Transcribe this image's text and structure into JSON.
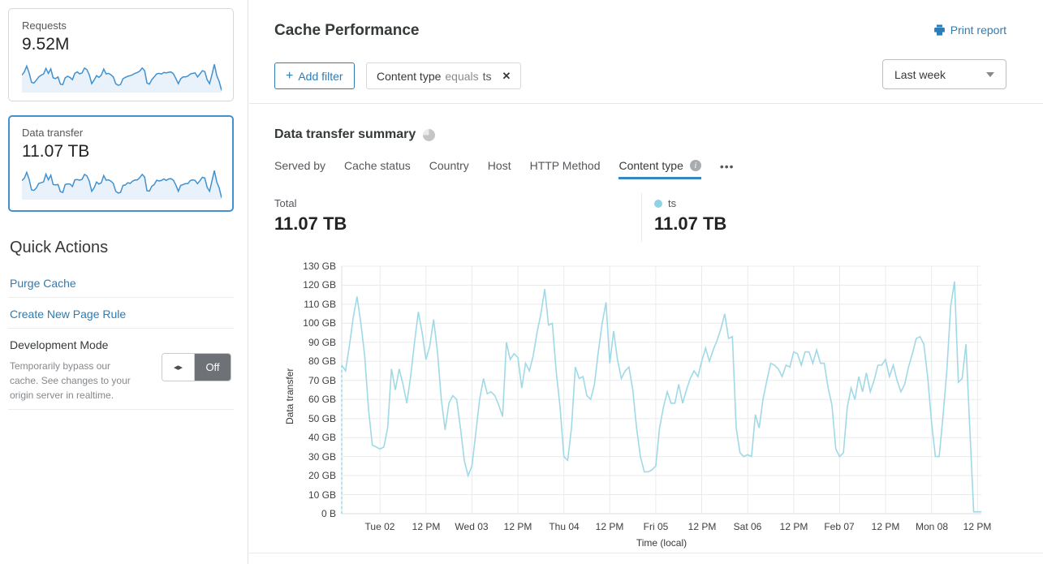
{
  "colors": {
    "accent": "#2c7cb5",
    "sparkline": "#4191ce",
    "sparkline_fill": "#e9f2fa",
    "selected_card_border": "#4191ce",
    "chart_line": "#a0d9e6",
    "legend_dot": "#8fd2e2",
    "active_tab_underline": "#3788c2",
    "toggle_off_bg": "#6e7277"
  },
  "sidebar": {
    "cards": [
      {
        "label": "Requests",
        "value": "9.52M",
        "sparkline": [
          70,
          85,
          110,
          80,
          38,
          35,
          48,
          62,
          70,
          75,
          100,
          78,
          98,
          58,
          55,
          62,
          30,
          28,
          58,
          65,
          60,
          50,
          78,
          85,
          76,
          80,
          102,
          95,
          72,
          32,
          48,
          68,
          60,
          70,
          97,
          76,
          78,
          72,
          62,
          32,
          25,
          28,
          54,
          60,
          65,
          68,
          72,
          78,
          82,
          88,
          102,
          90,
          35,
          30,
          50,
          62,
          76,
          78,
          75,
          82,
          80,
          83,
          84,
          76,
          55,
          32,
          54,
          62,
          62,
          66,
          75,
          78,
          80,
          62,
          75,
          90,
          86,
          50,
          32,
          72,
          118,
          68,
          42,
          2
        ]
      },
      {
        "label": "Data transfer",
        "value": "11.07 TB",
        "selected": true,
        "sparkline": [
          78,
          88,
          114,
          83,
          36,
          34,
          45,
          65,
          68,
          72,
          106,
          81,
          102,
          60,
          58,
          60,
          28,
          25,
          60,
          63,
          62,
          51,
          81,
          82,
          79,
          83,
          105,
          99,
          75,
          30,
          45,
          71,
          62,
          68,
          100,
          79,
          81,
          75,
          65,
          30,
          22,
          25,
          56,
          58,
          68,
          65,
          75,
          80,
          80,
          91,
          105,
          93,
          32,
          31,
          52,
          60,
          79,
          76,
          78,
          85,
          78,
          85,
          86,
          79,
          57,
          30,
          56,
          60,
          64,
          64,
          78,
          81,
          78,
          64,
          77,
          92,
          89,
          48,
          30,
          75,
          122,
          71,
          45,
          1
        ]
      }
    ],
    "quick_actions": {
      "title": "Quick Actions",
      "links": [
        "Purge Cache",
        "Create New Page Rule"
      ],
      "dev_mode": {
        "title": "Development Mode",
        "description": "Temporarily bypass our cache. See changes to your origin server in realtime.",
        "toggle_icon": "◂▸",
        "toggle_label": "Off"
      }
    }
  },
  "header": {
    "title": "Cache Performance",
    "print_label": "Print report",
    "add_filter": {
      "icon": "+",
      "label": "Add filter"
    },
    "filter_chip": {
      "field": "Content type",
      "operator": "equals",
      "value": "ts",
      "remove_icon": "✕"
    },
    "time_range": "Last week"
  },
  "summary": {
    "title": "Data transfer summary",
    "tabs": [
      {
        "label": "Served by"
      },
      {
        "label": "Cache status"
      },
      {
        "label": "Country"
      },
      {
        "label": "Host"
      },
      {
        "label": "HTTP Method"
      },
      {
        "label": "Content type",
        "active": true
      }
    ],
    "info_icon_glyph": "i",
    "more_label": "•••",
    "total": {
      "label": "Total",
      "value": "11.07 TB"
    },
    "legend": {
      "label": "ts",
      "value": "11.07 TB"
    }
  },
  "chart_data": {
    "type": "line",
    "title": "Data transfer summary — ts",
    "xlabel": "Time (local)",
    "ylabel": "Data transfer",
    "unit": "GB",
    "ylim": [
      0,
      130
    ],
    "grid": true,
    "x_description": "hourly samples, Mon Feb 01 14:00 through Mon Feb 08 13:00, first point rendered with dashed drop-line",
    "y_ticks": [
      {
        "value": 0,
        "label": "0 B"
      },
      {
        "value": 10,
        "label": "10 GB"
      },
      {
        "value": 20,
        "label": "20 GB"
      },
      {
        "value": 30,
        "label": "30 GB"
      },
      {
        "value": 40,
        "label": "40 GB"
      },
      {
        "value": 50,
        "label": "50 GB"
      },
      {
        "value": 60,
        "label": "60 GB"
      },
      {
        "value": 70,
        "label": "70 GB"
      },
      {
        "value": 80,
        "label": "80 GB"
      },
      {
        "value": 90,
        "label": "90 GB"
      },
      {
        "value": 100,
        "label": "100 GB"
      },
      {
        "value": 110,
        "label": "110 GB"
      },
      {
        "value": 120,
        "label": "120 GB"
      },
      {
        "value": 130,
        "label": "130 GB"
      }
    ],
    "x_ticks": [
      {
        "index": 10,
        "label": "Tue 02"
      },
      {
        "index": 22,
        "label": "12 PM"
      },
      {
        "index": 34,
        "label": "Wed 03"
      },
      {
        "index": 46,
        "label": "12 PM"
      },
      {
        "index": 58,
        "label": "Thu 04"
      },
      {
        "index": 70,
        "label": "12 PM"
      },
      {
        "index": 82,
        "label": "Fri 05"
      },
      {
        "index": 94,
        "label": "12 PM"
      },
      {
        "index": 106,
        "label": "Sat 06"
      },
      {
        "index": 118,
        "label": "12 PM"
      },
      {
        "index": 130,
        "label": "Feb 07"
      },
      {
        "index": 142,
        "label": "12 PM"
      },
      {
        "index": 154,
        "label": "Mon 08"
      },
      {
        "index": 166,
        "label": "12 PM"
      }
    ],
    "series": [
      {
        "name": "ts",
        "color": "#a0d9e6",
        "starts_dashed": true,
        "values": [
          78,
          75,
          88,
          103,
          114,
          100,
          83,
          55,
          36,
          35,
          34,
          35,
          45,
          76,
          65,
          76,
          68,
          58,
          72,
          90,
          106,
          95,
          81,
          88,
          102,
          85,
          60,
          44,
          58,
          62,
          60,
          45,
          28,
          20,
          25,
          42,
          60,
          71,
          63,
          64,
          62,
          57,
          51,
          90,
          81,
          84,
          82,
          66,
          79,
          75,
          83,
          95,
          105,
          118,
          99,
          100,
          75,
          56,
          30,
          28,
          45,
          77,
          71,
          72,
          62,
          60,
          68,
          85,
          100,
          111,
          79,
          96,
          81,
          71,
          75,
          77,
          65,
          45,
          30,
          22,
          22,
          23,
          25,
          45,
          56,
          64,
          58,
          58,
          68,
          58,
          65,
          71,
          75,
          72,
          80,
          87,
          80,
          86,
          91,
          97,
          105,
          92,
          93,
          45,
          32,
          30,
          31,
          30,
          52,
          45,
          60,
          70,
          79,
          78,
          76,
          72,
          78,
          77,
          85,
          84,
          78,
          85,
          85,
          79,
          86,
          79,
          79,
          66,
          57,
          34,
          30,
          32,
          56,
          66,
          60,
          72,
          64,
          74,
          64,
          70,
          78,
          78,
          81,
          72,
          78,
          70,
          64,
          68,
          77,
          84,
          92,
          93,
          89,
          72,
          48,
          30,
          30,
          51,
          75,
          109,
          122,
          69,
          71,
          89,
          45,
          1,
          1,
          1
        ]
      }
    ]
  }
}
